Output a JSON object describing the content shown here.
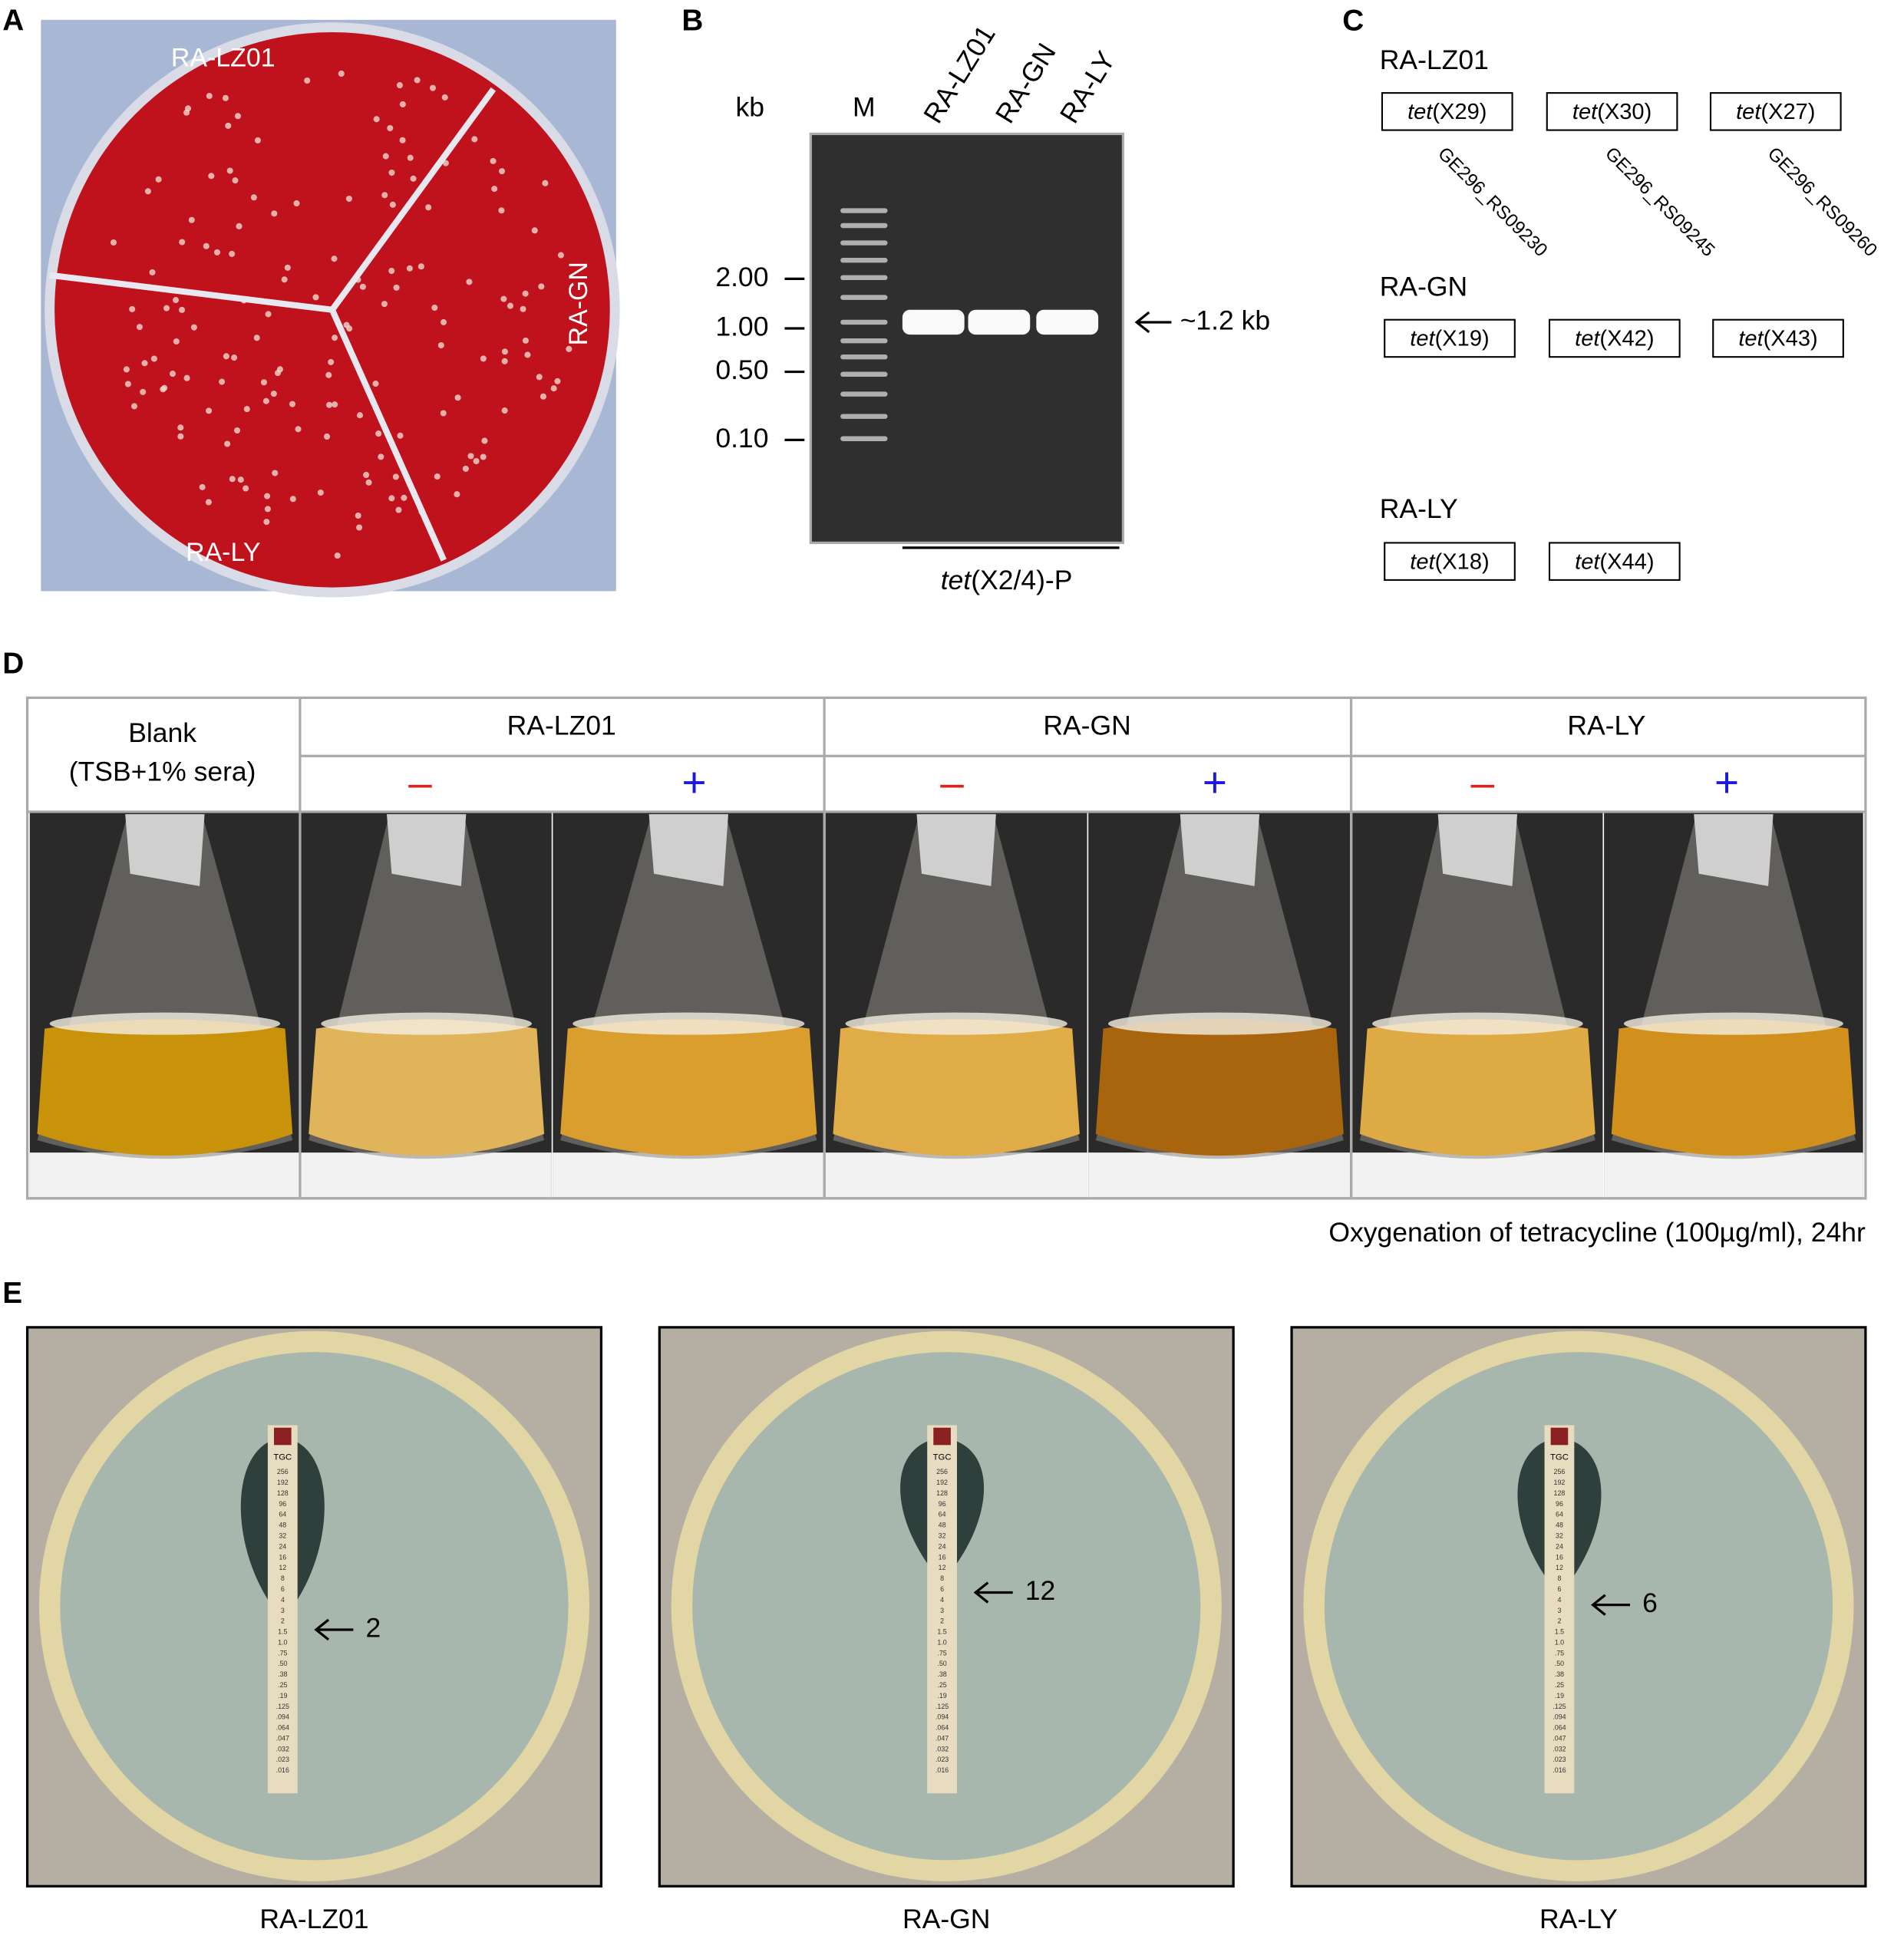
{
  "panelA": {
    "letter": "A",
    "labels": [
      "RA-LZ01",
      "RA-GN",
      "RA-LY"
    ]
  },
  "panelB": {
    "letter": "B",
    "unit": "kb",
    "marker": "M",
    "lanes": [
      "RA-LZ01",
      "RA-GN",
      "RA-LY"
    ],
    "sizes": [
      "2.00",
      "1.00",
      "0.50",
      "0.10"
    ],
    "band_label": "~1.2 kb",
    "product": {
      "italic": "tet",
      "rest": "(X2/4)-P"
    }
  },
  "panelC": {
    "letter": "C",
    "loci": [
      "GE296_RS09230",
      "GE296_RS09245",
      "GE296_RS09260"
    ],
    "strains": [
      {
        "name": "RA-LZ01",
        "genes": [
          {
            "italic": "tet",
            "rest": "(X29)"
          },
          {
            "italic": "tet",
            "rest": "(X30)"
          },
          {
            "italic": "tet",
            "rest": "(X27)"
          }
        ]
      },
      {
        "name": "RA-GN",
        "genes": [
          {
            "italic": "tet",
            "rest": "(X19)"
          },
          {
            "italic": "tet",
            "rest": "(X42)"
          },
          {
            "italic": "tet",
            "rest": "(X43)"
          }
        ]
      },
      {
        "name": "RA-LY",
        "genes": [
          {
            "italic": "tet",
            "rest": "(X18)"
          },
          {
            "italic": "tet",
            "rest": "(X44)"
          }
        ]
      }
    ]
  },
  "panelD": {
    "letter": "D",
    "blank": [
      "Blank",
      "(TSB+1% sera)"
    ],
    "strains": [
      "RA-LZ01",
      "RA-GN",
      "RA-LY"
    ],
    "signs": [
      "–",
      "+"
    ],
    "caption": "Oxygenation of tetracycline (100µg/ml), 24hr"
  },
  "panelE": {
    "letter": "E",
    "strip_label": "TGC",
    "scale": [
      "256",
      "192",
      "128",
      "96",
      "64",
      "48",
      "32",
      "24",
      "16",
      "12",
      "8",
      "6",
      "4",
      "3",
      "2",
      "1.5",
      "1.0",
      ".75",
      ".50",
      ".38",
      ".25",
      ".19",
      ".125",
      ".094",
      ".064",
      ".047",
      ".032",
      ".023",
      ".016"
    ],
    "plates": [
      {
        "name": "RA-LZ01",
        "mic": "2"
      },
      {
        "name": "RA-GN",
        "mic": "12"
      },
      {
        "name": "RA-LY",
        "mic": "6"
      }
    ]
  }
}
